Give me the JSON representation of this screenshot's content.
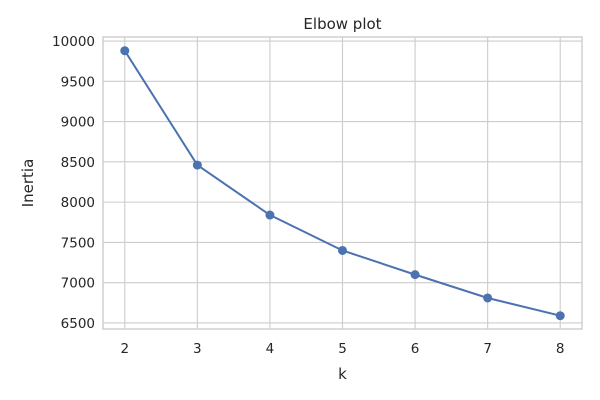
{
  "chart_data": {
    "type": "line",
    "title": "Elbow plot",
    "xlabel": "k",
    "ylabel": "Inertia",
    "x": [
      2,
      3,
      4,
      5,
      6,
      7,
      8
    ],
    "series": [
      {
        "values": [
          9880,
          8460,
          7840,
          7400,
          7100,
          6810,
          6590
        ]
      }
    ],
    "xlim": [
      1.7,
      8.3
    ],
    "ylim": [
      6425,
      10050
    ],
    "xticks": [
      2,
      3,
      4,
      5,
      6,
      7,
      8
    ],
    "yticks": [
      6500,
      7000,
      7500,
      8000,
      8500,
      9000,
      9500,
      10000
    ],
    "grid": true,
    "marker": "circle",
    "colors": {
      "series": "#4c72b0",
      "grid": "#cccccc",
      "text": "#262626"
    }
  }
}
